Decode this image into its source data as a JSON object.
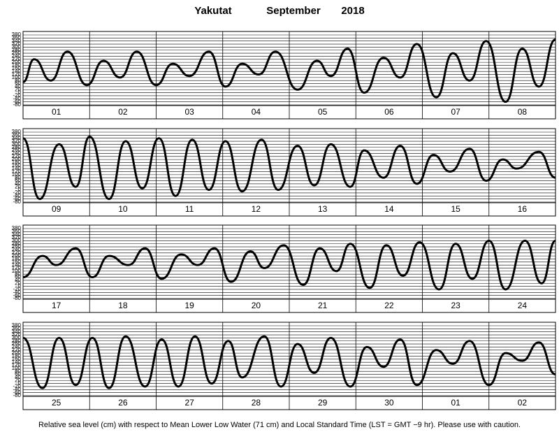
{
  "title": {
    "station": "Yakutat",
    "month": "September",
    "year": "2018"
  },
  "footer": "Relative sea level (cm) with respect to Mean Lower Low Water (71 cm) and Local Standard Time (LST = GMT −9 hr). Please use with caution.",
  "chart_data": [
    {
      "type": "line",
      "categories": [
        "01",
        "02",
        "03",
        "04",
        "05",
        "06",
        "07",
        "08"
      ],
      "xlim": [
        0,
        192
      ],
      "ylim": [
        -80,
        380
      ],
      "yticks": [
        380,
        360,
        340,
        320,
        300,
        280,
        260,
        240,
        220,
        200,
        180,
        160,
        140,
        120,
        100,
        80,
        60,
        40,
        20,
        0,
        -20,
        -40,
        -60,
        -80
      ],
      "grid": true,
      "series": [
        {
          "color": "#000000",
          "x": [
            0,
            4,
            10,
            16,
            23,
            29,
            35,
            41,
            48,
            54,
            60,
            67,
            73,
            79,
            85,
            91,
            99,
            106,
            111,
            117,
            123,
            130,
            136,
            142,
            149,
            155,
            161,
            167,
            174,
            180,
            186,
            192
          ],
          "values": [
            70,
            220,
            80,
            270,
            50,
            210,
            100,
            270,
            50,
            190,
            110,
            270,
            40,
            190,
            120,
            270,
            20,
            210,
            110,
            290,
            0,
            230,
            100,
            320,
            -30,
            260,
            80,
            340,
            -60,
            290,
            40,
            350
          ]
        }
      ]
    },
    {
      "type": "line",
      "categories": [
        "09",
        "10",
        "11",
        "12",
        "13",
        "14",
        "15",
        "16"
      ],
      "xlim": [
        0,
        192
      ],
      "ylim": [
        -80,
        380
      ],
      "yticks": [
        380,
        360,
        340,
        320,
        300,
        280,
        260,
        240,
        220,
        200,
        180,
        160,
        140,
        120,
        100,
        80,
        60,
        40,
        20,
        0,
        -20,
        -40,
        -60,
        -80
      ],
      "grid": true,
      "series": [
        {
          "color": "#000000",
          "x": [
            0,
            6,
            13,
            19,
            24,
            31,
            37,
            43,
            49,
            55,
            61,
            67,
            73,
            79,
            86,
            92,
            99,
            105,
            111,
            118,
            123,
            130,
            136,
            142,
            148,
            154,
            161,
            167,
            173,
            178,
            186,
            192
          ],
          "values": [
            340,
            -60,
            300,
            20,
            350,
            -60,
            320,
            10,
            340,
            -40,
            330,
            0,
            320,
            -10,
            330,
            0,
            290,
            30,
            300,
            20,
            260,
            80,
            290,
            40,
            230,
            120,
            270,
            60,
            200,
            140,
            250,
            80
          ]
        }
      ]
    },
    {
      "type": "line",
      "categories": [
        "17",
        "18",
        "19",
        "20",
        "21",
        "22",
        "23",
        "24"
      ],
      "xlim": [
        0,
        192
      ],
      "ylim": [
        -80,
        380
      ],
      "yticks": [
        380,
        360,
        340,
        320,
        300,
        280,
        260,
        240,
        220,
        200,
        180,
        160,
        140,
        120,
        100,
        80,
        60,
        40,
        20,
        0,
        -20,
        -40,
        -60,
        -80
      ],
      "grid": true,
      "series": [
        {
          "color": "#000000",
          "x": [
            0,
            7,
            12,
            19,
            25,
            31,
            38,
            44,
            50,
            57,
            63,
            69,
            75,
            82,
            87,
            94,
            101,
            107,
            113,
            118,
            125,
            131,
            137,
            143,
            150,
            156,
            162,
            168,
            174,
            181,
            187,
            192
          ],
          "values": [
            60,
            200,
            140,
            250,
            60,
            200,
            140,
            250,
            50,
            210,
            140,
            250,
            30,
            230,
            120,
            270,
            10,
            250,
            100,
            280,
            -10,
            270,
            70,
            290,
            -20,
            280,
            50,
            300,
            -20,
            300,
            20,
            300
          ]
        }
      ]
    },
    {
      "type": "line",
      "categories": [
        "25",
        "26",
        "27",
        "28",
        "29",
        "30",
        "01",
        "02"
      ],
      "xlim": [
        0,
        192
      ],
      "ylim": [
        -80,
        380
      ],
      "yticks": [
        380,
        360,
        340,
        320,
        300,
        280,
        260,
        240,
        220,
        200,
        180,
        160,
        140,
        120,
        100,
        80,
        60,
        40,
        20,
        0,
        -20,
        -40,
        -60,
        -80
      ],
      "grid": true,
      "series": [
        {
          "color": "#000000",
          "x": [
            0,
            7,
            13,
            19,
            25,
            31,
            37,
            44,
            50,
            56,
            62,
            68,
            74,
            79,
            87,
            93,
            99,
            105,
            111,
            118,
            124,
            130,
            136,
            142,
            149,
            155,
            161,
            168,
            174,
            180,
            186,
            192
          ],
          "values": [
            300,
            -30,
            300,
            -10,
            300,
            -30,
            310,
            -20,
            290,
            -20,
            310,
            0,
            280,
            40,
            310,
            -20,
            260,
            70,
            300,
            -20,
            240,
            110,
            290,
            -10,
            220,
            130,
            280,
            -10,
            200,
            150,
            270,
            60
          ]
        }
      ]
    }
  ]
}
